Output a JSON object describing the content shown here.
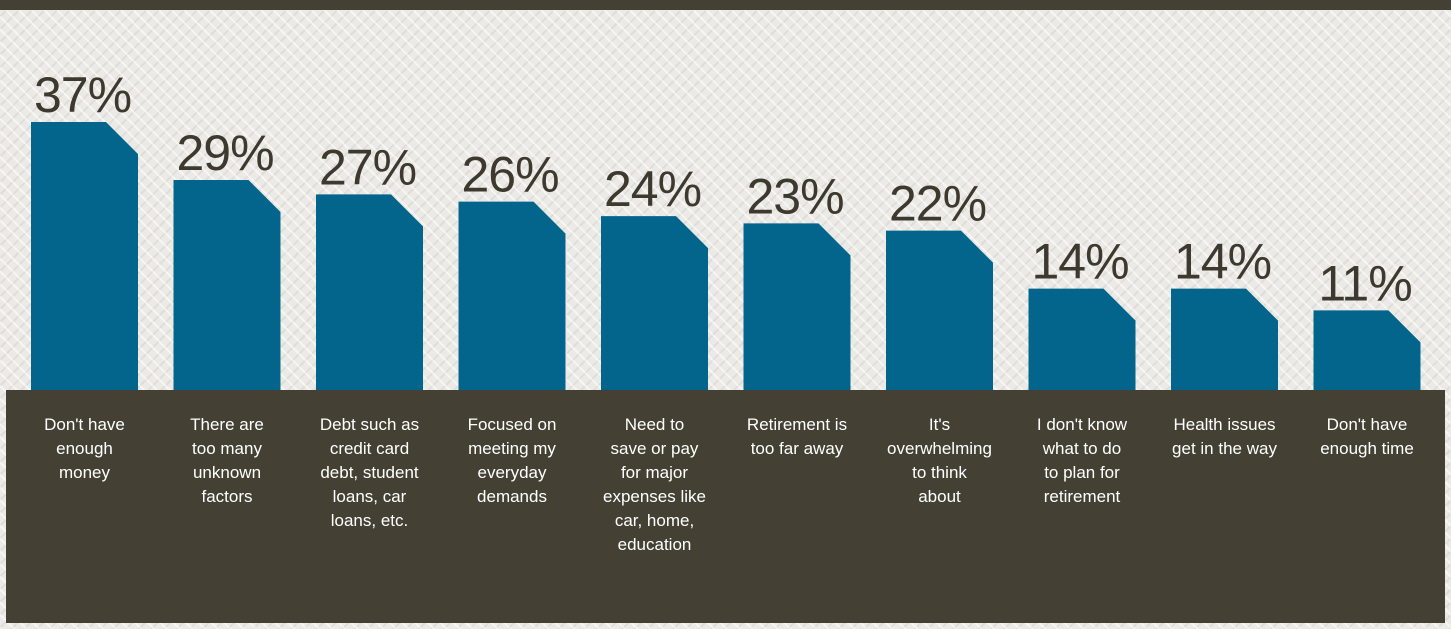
{
  "chart_data": {
    "type": "bar",
    "categories": [
      "Don't have enough money",
      "There are too many unknown factors",
      "Debt such as credit card debt, student loans, car loans, etc.",
      "Focused on meeting my everyday demands",
      "Need to save or pay for major expenses like car, home, education",
      "Retirement is too far away",
      "It's overwhelming to think about",
      "I don't know what to do to plan for retirement",
      "Health issues get in the way",
      "Don't have enough time"
    ],
    "values": [
      37,
      29,
      27,
      26,
      24,
      23,
      22,
      14,
      14,
      11
    ],
    "value_labels": [
      "37%",
      "29%",
      "27%",
      "26%",
      "24%",
      "23%",
      "22%",
      "14%",
      "14%",
      "11%"
    ],
    "unit": "%",
    "ylim": [
      0,
      37
    ],
    "grid": false,
    "legend": "none"
  },
  "colors": {
    "bar": "#03658c",
    "band": "#454034",
    "value_text": "#3e392e",
    "category_text": "#ffffff"
  }
}
